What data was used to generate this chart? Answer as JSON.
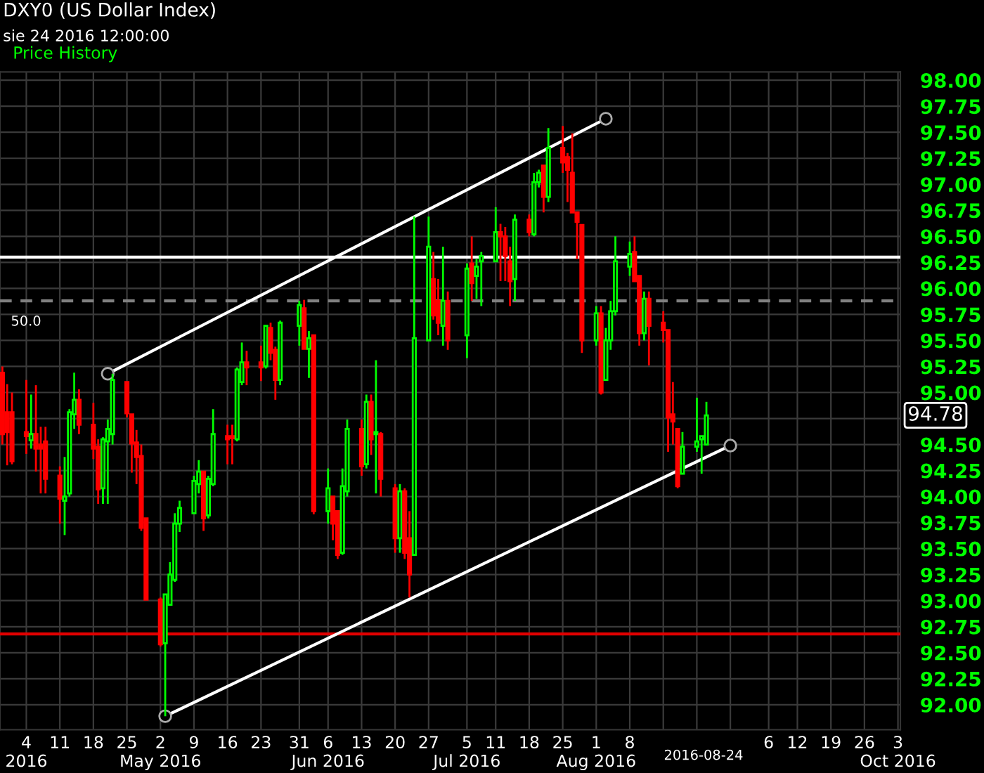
{
  "chart_data": {
    "type": "candlestick",
    "title": "DXY0 (US Dollar Index)",
    "subtitle": "sie 24 2016 12:00:00",
    "annotations": [
      "Price History",
      "94.78",
      "2016-08-24",
      "50.0"
    ],
    "x": [
      "2016-03-30",
      "2016-03-31",
      "2016-04-01",
      "2016-04-04",
      "2016-04-05",
      "2016-04-06",
      "2016-04-07",
      "2016-04-08",
      "2016-04-11",
      "2016-04-12",
      "2016-04-13",
      "2016-04-14",
      "2016-04-15",
      "2016-04-18",
      "2016-04-19",
      "2016-04-20",
      "2016-04-21",
      "2016-04-22",
      "2016-04-25",
      "2016-04-26",
      "2016-04-27",
      "2016-04-28",
      "2016-04-29",
      "2016-05-02",
      "2016-05-03",
      "2016-05-04",
      "2016-05-05",
      "2016-05-06",
      "2016-05-09",
      "2016-05-10",
      "2016-05-11",
      "2016-05-12",
      "2016-05-13",
      "2016-05-16",
      "2016-05-17",
      "2016-05-18",
      "2016-05-19",
      "2016-05-20",
      "2016-05-23",
      "2016-05-24",
      "2016-05-25",
      "2016-05-26",
      "2016-05-27",
      "2016-05-31",
      "2016-06-01",
      "2016-06-02",
      "2016-06-03",
      "2016-06-06",
      "2016-06-07",
      "2016-06-08",
      "2016-06-09",
      "2016-06-10",
      "2016-06-13",
      "2016-06-14",
      "2016-06-15",
      "2016-06-16",
      "2016-06-17",
      "2016-06-20",
      "2016-06-21",
      "2016-06-22",
      "2016-06-23",
      "2016-06-24",
      "2016-06-27",
      "2016-06-28",
      "2016-06-29",
      "2016-06-30",
      "2016-07-01",
      "2016-07-05",
      "2016-07-06",
      "2016-07-07",
      "2016-07-08",
      "2016-07-11",
      "2016-07-12",
      "2016-07-13",
      "2016-07-14",
      "2016-07-15",
      "2016-07-18",
      "2016-07-19",
      "2016-07-20",
      "2016-07-21",
      "2016-07-22",
      "2016-07-25",
      "2016-07-26",
      "2016-07-27",
      "2016-07-28",
      "2016-07-29",
      "2016-08-01",
      "2016-08-02",
      "2016-08-03",
      "2016-08-04",
      "2016-08-05",
      "2016-08-08",
      "2016-08-09",
      "2016-08-10",
      "2016-08-11",
      "2016-08-12",
      "2016-08-15",
      "2016-08-16",
      "2016-08-17",
      "2016-08-18",
      "2016-08-19",
      "2016-08-22",
      "2016-08-23",
      "2016-08-24"
    ],
    "ohlc": [
      [
        95.19,
        95.25,
        94.5,
        94.6
      ],
      [
        94.81,
        95.08,
        94.3,
        94.62
      ],
      [
        94.81,
        95.0,
        94.31,
        94.34
      ],
      [
        94.62,
        95.12,
        94.41,
        94.58
      ],
      [
        94.54,
        94.98,
        94.46,
        94.6
      ],
      [
        94.6,
        95.07,
        94.24,
        94.46
      ],
      [
        94.5,
        94.67,
        94.03,
        94.46
      ],
      [
        94.53,
        94.67,
        94.03,
        94.17
      ],
      [
        94.2,
        94.29,
        93.74,
        93.98
      ],
      [
        93.96,
        94.38,
        93.63,
        94.0
      ],
      [
        94.03,
        94.84,
        94.0,
        94.81
      ],
      [
        94.79,
        95.19,
        94.65,
        94.93
      ],
      [
        94.93,
        95.03,
        94.6,
        94.69
      ],
      [
        94.69,
        94.9,
        94.36,
        94.46
      ],
      [
        94.48,
        94.55,
        93.93,
        94.07
      ],
      [
        94.08,
        94.57,
        93.93,
        94.55
      ],
      [
        94.53,
        94.74,
        93.93,
        94.65
      ],
      [
        94.6,
        95.18,
        94.5,
        95.12
      ],
      [
        95.1,
        95.1,
        94.76,
        94.8
      ],
      [
        94.79,
        94.79,
        94.23,
        94.51
      ],
      [
        94.52,
        94.64,
        94.12,
        94.38
      ],
      [
        94.39,
        94.5,
        93.67,
        93.7
      ],
      [
        93.79,
        93.79,
        93.01,
        93.01
      ],
      [
        93.01,
        93.03,
        92.56,
        92.58
      ],
      [
        92.59,
        93.06,
        91.89,
        93.06
      ],
      [
        92.96,
        93.37,
        92.96,
        93.25
      ],
      [
        93.2,
        93.84,
        93.18,
        93.74
      ],
      [
        93.74,
        93.96,
        93.66,
        93.89
      ],
      [
        93.84,
        94.2,
        93.84,
        94.15
      ],
      [
        94.12,
        94.35,
        94.03,
        94.24
      ],
      [
        94.24,
        94.24,
        93.67,
        93.79
      ],
      [
        93.82,
        94.2,
        93.79,
        94.17
      ],
      [
        94.12,
        94.84,
        94.1,
        94.6
      ],
      [
        94.58,
        94.69,
        94.31,
        94.55
      ],
      [
        94.58,
        94.69,
        94.31,
        94.56
      ],
      [
        94.55,
        95.24,
        94.53,
        95.22
      ],
      [
        95.1,
        95.48,
        95.07,
        95.29
      ],
      [
        95.29,
        95.4,
        95.07,
        95.24
      ],
      [
        95.29,
        95.45,
        95.11,
        95.24
      ],
      [
        95.25,
        95.64,
        95.23,
        95.64
      ],
      [
        95.62,
        95.67,
        95.31,
        95.38
      ],
      [
        95.41,
        95.44,
        94.93,
        95.12
      ],
      [
        95.12,
        95.69,
        95.07,
        95.67
      ],
      [
        95.64,
        95.88,
        95.45,
        95.84
      ],
      [
        95.81,
        95.89,
        95.42,
        95.42
      ],
      [
        95.42,
        95.59,
        95.14,
        95.52
      ],
      [
        95.55,
        95.55,
        93.83,
        93.86
      ],
      [
        93.86,
        94.27,
        93.74,
        94.08
      ],
      [
        94.0,
        94.0,
        93.58,
        93.74
      ],
      [
        93.86,
        93.86,
        93.4,
        93.44
      ],
      [
        93.46,
        94.27,
        93.44,
        94.1
      ],
      [
        94.05,
        94.74,
        94.0,
        94.65
      ],
      [
        94.65,
        94.74,
        94.2,
        94.29
      ],
      [
        94.31,
        94.98,
        94.27,
        94.91
      ],
      [
        94.91,
        94.98,
        94.4,
        94.55
      ],
      [
        94.6,
        95.31,
        94.03,
        94.62
      ],
      [
        94.6,
        94.62,
        94.0,
        94.17
      ],
      [
        94.08,
        94.12,
        93.46,
        93.6
      ],
      [
        93.6,
        94.12,
        93.46,
        94.05
      ],
      [
        94.05,
        94.08,
        93.4,
        93.46
      ],
      [
        93.6,
        93.86,
        93.03,
        93.25
      ],
      [
        93.44,
        96.69,
        93.44,
        95.52
      ],
      [
        95.5,
        96.69,
        95.5,
        96.4
      ],
      [
        96.09,
        96.35,
        95.7,
        95.74
      ],
      [
        95.88,
        96.09,
        95.55,
        95.67
      ],
      [
        95.64,
        96.4,
        95.45,
        95.88
      ],
      [
        95.88,
        95.97,
        95.41,
        95.5
      ],
      [
        95.55,
        96.24,
        95.33,
        96.19
      ],
      [
        96.24,
        96.5,
        95.88,
        96.05
      ],
      [
        96.12,
        96.28,
        95.9,
        96.21
      ],
      [
        96.26,
        96.35,
        95.83,
        96.31
      ],
      [
        96.26,
        96.78,
        96.26,
        96.54
      ],
      [
        96.54,
        96.62,
        96.07,
        96.5
      ],
      [
        96.5,
        96.59,
        96.07,
        96.31
      ],
      [
        96.26,
        96.4,
        95.83,
        96.07
      ],
      [
        96.09,
        96.71,
        95.88,
        96.66
      ],
      [
        96.66,
        96.71,
        96.5,
        96.54
      ],
      [
        96.52,
        97.11,
        96.5,
        97.02
      ],
      [
        97.02,
        97.14,
        96.97,
        97.11
      ],
      [
        97.18,
        97.18,
        96.73,
        96.88
      ],
      [
        96.88,
        97.54,
        96.83,
        97.35
      ],
      [
        97.35,
        97.56,
        97.11,
        97.21
      ],
      [
        97.26,
        97.3,
        96.83,
        97.14
      ],
      [
        97.11,
        97.49,
        96.73,
        96.73
      ],
      [
        96.73,
        96.73,
        96.28,
        96.64
      ],
      [
        96.61,
        96.61,
        95.38,
        95.5
      ],
      [
        95.5,
        95.83,
        95.45,
        95.76
      ],
      [
        95.76,
        95.83,
        94.98,
        95.0
      ],
      [
        95.12,
        95.62,
        95.12,
        95.5
      ],
      [
        95.5,
        95.88,
        95.41,
        95.78
      ],
      [
        95.78,
        96.5,
        95.74,
        96.26
      ],
      [
        96.21,
        96.45,
        96.12,
        96.33
      ],
      [
        96.35,
        96.5,
        96.07,
        96.07
      ],
      [
        96.12,
        96.12,
        95.45,
        95.57
      ],
      [
        95.57,
        95.97,
        95.5,
        95.9
      ],
      [
        95.9,
        95.97,
        95.26,
        95.64
      ],
      [
        95.67,
        95.78,
        95.48,
        95.6
      ],
      [
        95.6,
        95.6,
        94.43,
        94.76
      ],
      [
        94.79,
        95.1,
        94.5,
        94.72
      ],
      [
        94.65,
        94.65,
        94.08,
        94.1
      ],
      [
        94.22,
        94.62,
        94.22,
        94.48
      ],
      [
        94.48,
        94.95,
        94.43,
        94.53
      ],
      [
        94.55,
        94.58,
        94.22,
        94.58
      ],
      [
        94.5,
        94.91,
        94.5,
        94.78
      ]
    ],
    "colors": [
      "#ff0000",
      "#ff0000",
      "#ff0000",
      "#ff0000",
      "#00ff00",
      "#ff0000",
      "#ff0000",
      "#ff0000",
      "#ff0000",
      "#00ff00",
      "#00ff00",
      "#00ff00",
      "#ff0000",
      "#ff0000",
      "#ff0000",
      "#00ff00",
      "#00ff00",
      "#00ff00",
      "#ff0000",
      "#ff0000",
      "#ff0000",
      "#ff0000",
      "#ff0000",
      "#ff0000",
      "#00ff00",
      "#00ff00",
      "#00ff00",
      "#00ff00",
      "#00ff00",
      "#00ff00",
      "#ff0000",
      "#00ff00",
      "#00ff00",
      "#ff0000",
      "#ff0000",
      "#00ff00",
      "#00ff00",
      "#ff0000",
      "#ff0000",
      "#00ff00",
      "#ff0000",
      "#ff0000",
      "#00ff00",
      "#00ff00",
      "#ff0000",
      "#00ff00",
      "#ff0000",
      "#00ff00",
      "#ff0000",
      "#ff0000",
      "#00ff00",
      "#00ff00",
      "#ff0000",
      "#00ff00",
      "#ff0000",
      "#00ff00",
      "#ff0000",
      "#ff0000",
      "#00ff00",
      "#ff0000",
      "#ff0000",
      "#00ff00",
      "#00ff00",
      "#ff0000",
      "#ff0000",
      "#00ff00",
      "#ff0000",
      "#00ff00",
      "#ff0000",
      "#00ff00",
      "#00ff00",
      "#00ff00",
      "#ff0000",
      "#ff0000",
      "#ff0000",
      "#00ff00",
      "#ff0000",
      "#00ff00",
      "#00ff00",
      "#ff0000",
      "#00ff00",
      "#ff0000",
      "#ff0000",
      "#ff0000",
      "#ff0000",
      "#ff0000",
      "#00ff00",
      "#ff0000",
      "#00ff00",
      "#00ff00",
      "#00ff00",
      "#00ff00",
      "#ff0000",
      "#ff0000",
      "#00ff00",
      "#ff0000",
      "#ff0000",
      "#ff0000",
      "#ff0000",
      "#ff0000",
      "#00ff00",
      "#00ff00",
      "#00ff00",
      "#00ff00"
    ],
    "series": [
      {
        "type": "line",
        "color": "#ffffff",
        "marker": "circle",
        "x": [
          "2016-04-21",
          "2016-08-03"
        ],
        "values": [
          95.18,
          97.63
        ]
      },
      {
        "type": "line",
        "color": "#ffffff",
        "marker": "circle",
        "x": [
          "2016-05-03",
          "2016-08-29"
        ],
        "values": [
          91.89,
          94.49
        ]
      }
    ],
    "ref_lines": [
      {
        "axis": "y",
        "value": 96.3,
        "color": "#ffffff",
        "line_style": "solid"
      },
      {
        "axis": "y",
        "value": 95.88,
        "color": "#808080",
        "line_style": "dashed"
      },
      {
        "axis": "y",
        "value": 92.68,
        "color": "#e00000",
        "line_style": "solid"
      }
    ],
    "xlim": [
      "2016-03-29T12:00",
      "2016-10-03T12:00"
    ],
    "xticks": [
      {
        "value": "2016-04-04",
        "label": "4\n2016"
      },
      {
        "value": "2016-04-11",
        "label": "11"
      },
      {
        "value": "2016-04-18",
        "label": "18"
      },
      {
        "value": "2016-04-25",
        "label": "25"
      },
      {
        "value": "2016-05-02",
        "label": "2\nMay 2016"
      },
      {
        "value": "2016-05-09",
        "label": "9"
      },
      {
        "value": "2016-05-16",
        "label": "16"
      },
      {
        "value": "2016-05-23",
        "label": "23"
      },
      {
        "value": "2016-05-31",
        "label": "31"
      },
      {
        "value": "2016-06-06",
        "label": "6\nJun 2016"
      },
      {
        "value": "2016-06-13",
        "label": "13"
      },
      {
        "value": "2016-06-20",
        "label": "20"
      },
      {
        "value": "2016-06-27",
        "label": "27"
      },
      {
        "value": "2016-07-05",
        "label": "5\nJul 2016"
      },
      {
        "value": "2016-07-11",
        "label": "11"
      },
      {
        "value": "2016-07-18",
        "label": "18"
      },
      {
        "value": "2016-07-25",
        "label": "25"
      },
      {
        "value": "2016-08-01",
        "label": "1\nAug 2016"
      },
      {
        "value": "2016-08-08",
        "label": "8"
      },
      {
        "value": "2016-08-15",
        "label": null
      },
      {
        "value": "2016-08-22",
        "label": null
      },
      {
        "value": "2016-08-29",
        "label": null
      },
      {
        "value": "2016-09-06",
        "label": "6"
      },
      {
        "value": "2016-09-12",
        "label": "12"
      },
      {
        "value": "2016-09-19",
        "label": "19"
      },
      {
        "value": "2016-09-26",
        "label": "26"
      },
      {
        "value": "2016-10-03",
        "label": "3\nOct 2016"
      }
    ],
    "ylim": [
      91.76,
      98.08
    ],
    "yticks": [
      {
        "value": 92,
        "label": "92.00"
      },
      {
        "value": 92.25,
        "label": "92.25"
      },
      {
        "value": 92.5,
        "label": "92.50"
      },
      {
        "value": 92.75,
        "label": "92.75"
      },
      {
        "value": 93,
        "label": "93.00"
      },
      {
        "value": 93.25,
        "label": "93.25"
      },
      {
        "value": 93.5,
        "label": "93.50"
      },
      {
        "value": 93.75,
        "label": "93.75"
      },
      {
        "value": 94,
        "label": "94.00"
      },
      {
        "value": 94.25,
        "label": "94.25"
      },
      {
        "value": 94.5,
        "label": "94.50"
      },
      {
        "value": 94.75,
        "label": null
      },
      {
        "value": 95,
        "label": "95.00"
      },
      {
        "value": 95.25,
        "label": "95.25"
      },
      {
        "value": 95.5,
        "label": "95.50"
      },
      {
        "value": 95.75,
        "label": "95.75"
      },
      {
        "value": 96,
        "label": "96.00"
      },
      {
        "value": 96.25,
        "label": "96.25"
      },
      {
        "value": 96.5,
        "label": "96.50"
      },
      {
        "value": 96.75,
        "label": "96.75"
      },
      {
        "value": 97,
        "label": "97.00"
      },
      {
        "value": 97.25,
        "label": "97.25"
      },
      {
        "value": 97.5,
        "label": "97.50"
      },
      {
        "value": 97.75,
        "label": "97.75"
      },
      {
        "value": 98,
        "label": "98.00"
      }
    ],
    "grid": true
  }
}
